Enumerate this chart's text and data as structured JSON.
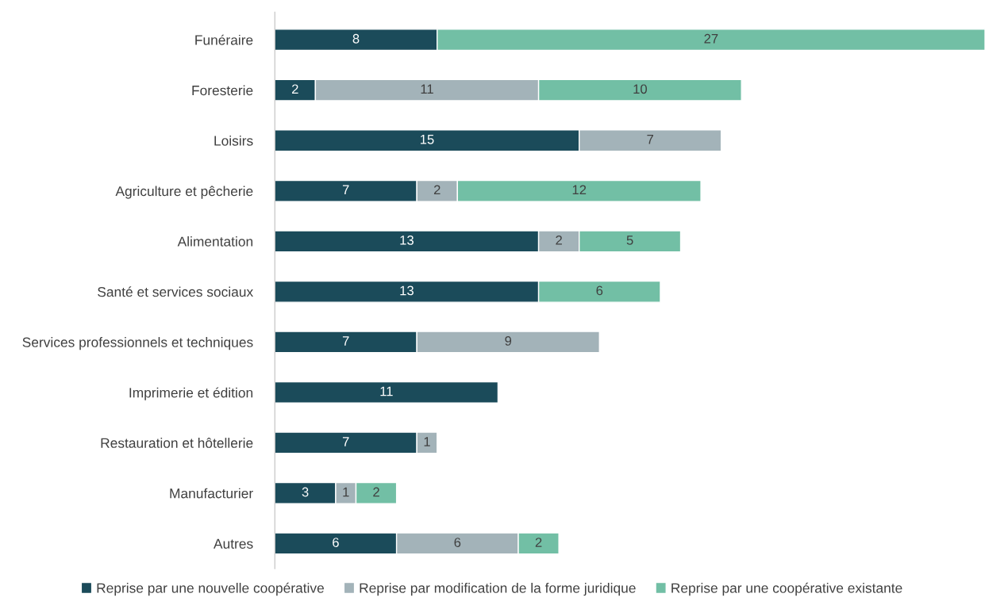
{
  "chart_data": {
    "type": "bar",
    "orientation": "horizontal",
    "stacked": true,
    "data_labels": true,
    "legend": "bottom",
    "grid": false,
    "tick_labels": "y",
    "categories": [
      "Funéraire",
      "Foresterie",
      "Loisirs",
      "Agriculture et pêcherie",
      "Alimentation",
      "Santé et services sociaux",
      "Services professionnels et techniques",
      "Imprimerie et édition",
      "Restauration et hôtellerie",
      "Manufacturier",
      "Autres"
    ],
    "series": [
      {
        "name": "Reprise par une nouvelle coopérative",
        "color": "#1b4b5a",
        "values": [
          8,
          2,
          15,
          7,
          13,
          13,
          7,
          11,
          7,
          3,
          6
        ]
      },
      {
        "name": "Reprise par modification de la forme juridique",
        "color": "#a3b3b9",
        "values": [
          null,
          11,
          7,
          2,
          2,
          null,
          9,
          null,
          1,
          1,
          6
        ]
      },
      {
        "name": "Reprise par une coopérative existante",
        "color": "#72bfa5",
        "values": [
          27,
          10,
          null,
          12,
          5,
          6,
          null,
          null,
          null,
          2,
          2
        ]
      }
    ]
  }
}
